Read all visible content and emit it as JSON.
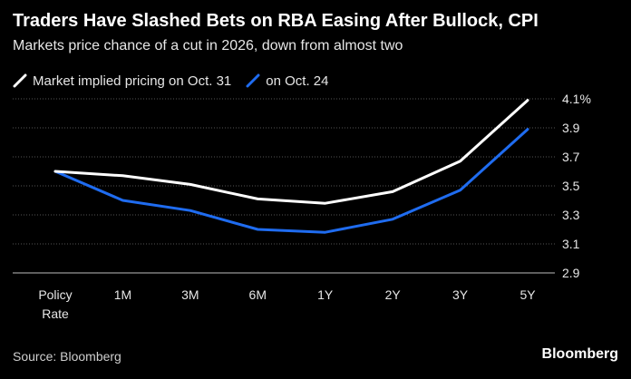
{
  "header": {
    "title": "Traders Have Slashed Bets on RBA Easing After Bullock, CPI",
    "subtitle": "Markets price chance of a cut in 2026, down from almost two"
  },
  "footer": {
    "source": "Source: Bloomberg",
    "brand": "Bloomberg"
  },
  "colors": {
    "background": "#000000",
    "oct31": "#ffffff",
    "oct24": "#1f6cf0",
    "grid": "#555555",
    "text": "#e6e6e6"
  },
  "chart_data": {
    "type": "line",
    "title": "Traders Have Slashed Bets on RBA Easing After Bullock, CPI",
    "subtitle": "Markets price chance of a cut in 2026, down from almost two",
    "xlabel": "",
    "ylabel": "",
    "categories": [
      [
        "Policy",
        "Rate"
      ],
      [
        "1M"
      ],
      [
        "3M"
      ],
      [
        "6M"
      ],
      [
        "1Y"
      ],
      [
        "2Y"
      ],
      [
        "3Y"
      ],
      [
        "5Y"
      ]
    ],
    "series": [
      {
        "name": "Market implied pricing on Oct. 31",
        "color": "#ffffff",
        "values": [
          3.6,
          3.57,
          3.51,
          3.41,
          3.38,
          3.46,
          3.67,
          4.09
        ]
      },
      {
        "name": "on Oct. 24",
        "color": "#1f6cf0",
        "values": [
          3.6,
          3.4,
          3.33,
          3.2,
          3.18,
          3.27,
          3.47,
          3.89
        ]
      }
    ],
    "ylim": [
      2.9,
      4.1
    ],
    "yticks": [
      {
        "value": 2.9,
        "label": "2.9"
      },
      {
        "value": 3.1,
        "label": "3.1"
      },
      {
        "value": 3.3,
        "label": "3.3"
      },
      {
        "value": 3.5,
        "label": "3.5"
      },
      {
        "value": 3.7,
        "label": "3.7"
      },
      {
        "value": 3.9,
        "label": "3.9"
      },
      {
        "value": 4.1,
        "label": "4.1%"
      }
    ],
    "grid": true,
    "legend_position": "top-left",
    "y_axis_side": "right"
  }
}
